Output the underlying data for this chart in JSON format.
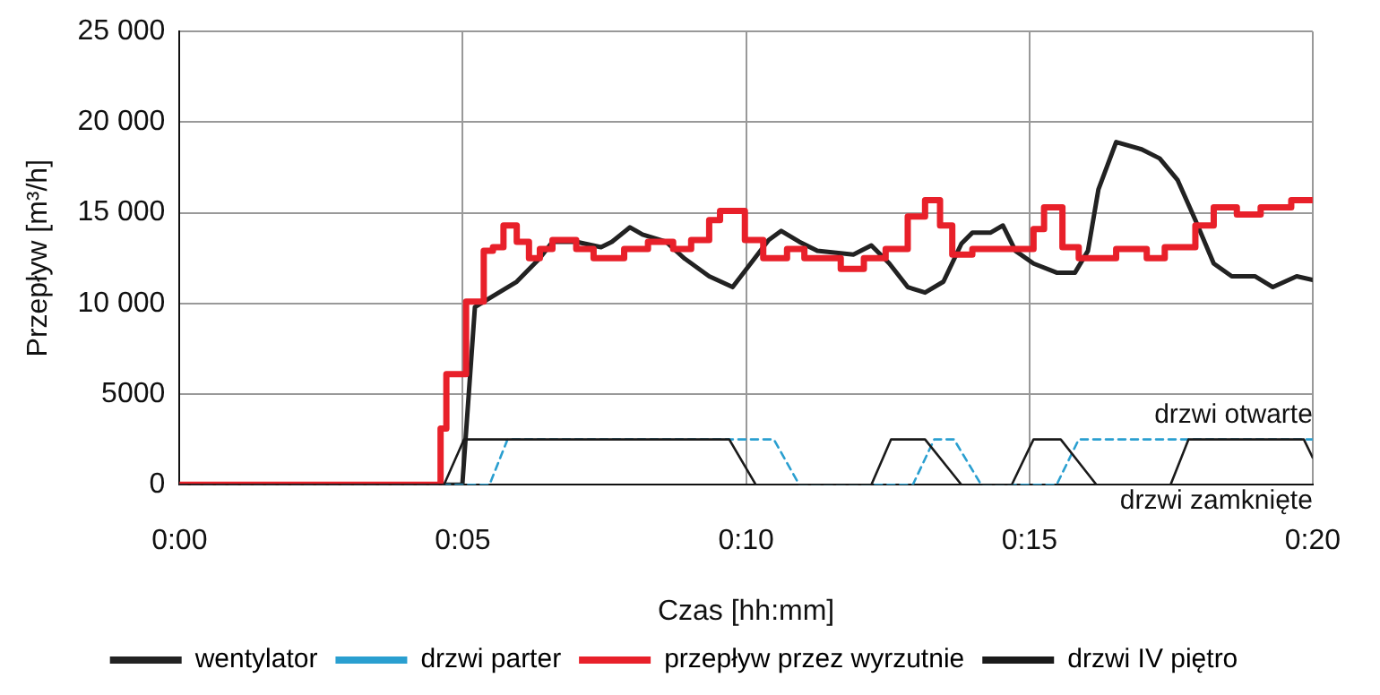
{
  "chart_data": {
    "type": "line",
    "xlabel": "Czas [hh:mm]",
    "ylabel": "Przepływ [m³/h]",
    "xlim": [
      0,
      0.3333
    ],
    "xticks": [
      {
        "value": 0,
        "label": "0:00"
      },
      {
        "value": 0.08333,
        "label": "0:05"
      },
      {
        "value": 0.16667,
        "label": "0:10"
      },
      {
        "value": 0.25,
        "label": "0:15"
      },
      {
        "value": 0.3333,
        "label": "0:20"
      }
    ],
    "ylim": [
      0,
      25000
    ],
    "yticks": [
      {
        "value": 0,
        "label": "0"
      },
      {
        "value": 5000,
        "label": "5000"
      },
      {
        "value": 10000,
        "label": "10 000"
      },
      {
        "value": 15000,
        "label": "15 000"
      },
      {
        "value": 20000,
        "label": "20 000"
      },
      {
        "value": 25000,
        "label": "25 000"
      }
    ],
    "grid": true,
    "legend": "bottom",
    "marker": "none",
    "annotations": [
      "drzwi otwarte",
      "drzwi zamknięte"
    ],
    "series": [
      {
        "name": "wentylator",
        "color": "#222222",
        "line_style": "solid",
        "x": [
          0,
          0.0832,
          0.0869,
          0.0922,
          0.0992,
          0.106,
          0.1097,
          0.1167,
          0.124,
          0.1272,
          0.1325,
          0.1362,
          0.1431,
          0.1484,
          0.1558,
          0.1627,
          0.1733,
          0.177,
          0.1823,
          0.1876,
          0.1982,
          0.2035,
          0.2088,
          0.2142,
          0.2193,
          0.2247,
          0.23,
          0.2332,
          0.2385,
          0.2422,
          0.2459,
          0.2512,
          0.258,
          0.2634,
          0.2672,
          0.2703,
          0.2755,
          0.283,
          0.2883,
          0.2936,
          0.2988,
          0.3042,
          0.3095,
          0.3163,
          0.3216,
          0.3286,
          0.3333
        ],
        "values": [
          0,
          0,
          9800,
          10400,
          11200,
          12500,
          13400,
          13400,
          13100,
          13400,
          14200,
          13800,
          13400,
          12500,
          11500,
          10900,
          13500,
          14000,
          13400,
          12900,
          12700,
          13200,
          12200,
          10900,
          10600,
          11200,
          13300,
          13900,
          13900,
          14300,
          12900,
          12200,
          11700,
          11700,
          12900,
          16300,
          18900,
          18500,
          18000,
          16800,
          14600,
          12200,
          11500,
          11500,
          10900,
          11500,
          11300
        ]
      },
      {
        "name": "drzwi parter",
        "color": "#2a9fd0",
        "line_style": "dashed",
        "x": [
          0,
          0.0912,
          0.0965,
          0.1748,
          0.1823,
          0.2157,
          0.222,
          0.2278,
          0.2358,
          0.258,
          0.2645,
          0.3333
        ],
        "values": [
          0,
          0,
          2500,
          2500,
          0,
          0,
          2500,
          2500,
          0,
          0,
          2500,
          2500
        ]
      },
      {
        "name": "przepływ przez wyrzutnie",
        "type": "step",
        "color": "#e8202a",
        "line_style": "solid",
        "x": [
          0,
          0.0768,
          0.0785,
          0.0843,
          0.0895,
          0.0922,
          0.0953,
          0.0992,
          0.1028,
          0.106,
          0.1097,
          0.1167,
          0.1218,
          0.1308,
          0.1378,
          0.1452,
          0.1505,
          0.1558,
          0.159,
          0.1663,
          0.1717,
          0.1787,
          0.1838,
          0.1945,
          0.2013,
          0.2077,
          0.2142,
          0.2193,
          0.2237,
          0.2273,
          0.2332,
          0.2512,
          0.2543,
          0.2597,
          0.2645,
          0.2672,
          0.2755,
          0.2845,
          0.2898,
          0.2988,
          0.3042,
          0.311,
          0.318,
          0.327,
          0.3333
        ],
        "values": [
          0,
          3100,
          6100,
          10100,
          12900,
          13100,
          14300,
          13400,
          12500,
          13000,
          13500,
          13000,
          12500,
          13000,
          13400,
          13000,
          13500,
          14600,
          15100,
          13500,
          12500,
          13000,
          12500,
          11900,
          12500,
          13000,
          14800,
          15700,
          14300,
          12700,
          13000,
          14100,
          15300,
          13100,
          12500,
          12500,
          13000,
          12500,
          13100,
          14300,
          15300,
          14900,
          15300,
          15700,
          15700
        ]
      },
      {
        "name": "drzwi IV piętro",
        "color": "#1a1a1a",
        "line_style": "solid",
        "x": [
          0,
          0.0778,
          0.0837,
          0.1617,
          0.1695,
          0.2035,
          0.2093,
          0.2193,
          0.23,
          0.2448,
          0.2512,
          0.2592,
          0.2697,
          0.2915,
          0.2968,
          0.3307,
          0.3333
        ],
        "values": [
          0,
          0,
          2500,
          2500,
          0,
          0,
          2500,
          2500,
          0,
          0,
          2500,
          2500,
          0,
          0,
          2500,
          2500,
          1500
        ]
      }
    ]
  }
}
